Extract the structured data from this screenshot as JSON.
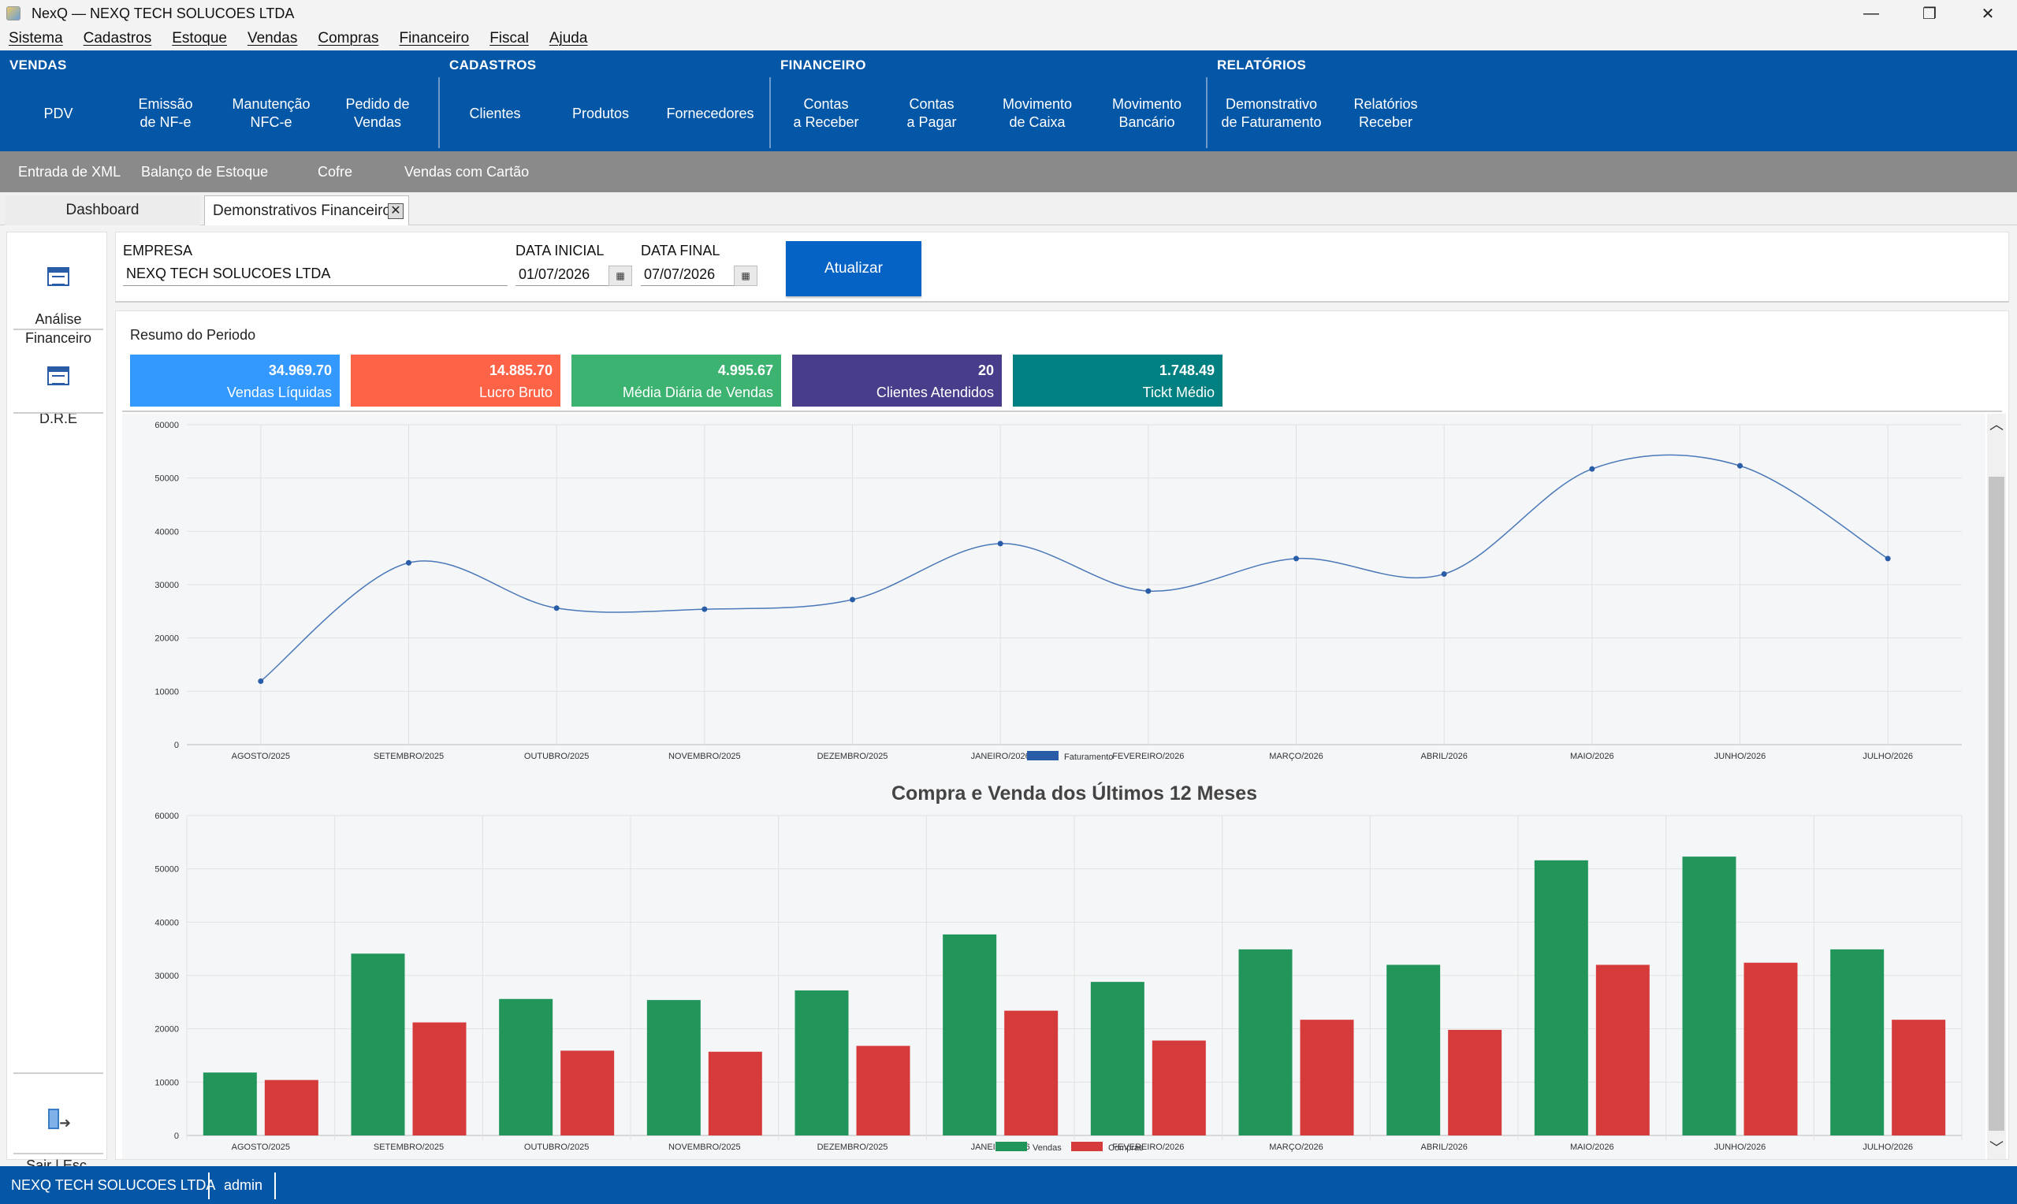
{
  "window": {
    "title": "NexQ — NEXQ TECH SOLUCOES LTDA",
    "minimize_glyph": "—",
    "restore_glyph": "❐",
    "close_glyph": "✕"
  },
  "menu": [
    "Sistema",
    "Cadastros",
    "Estoque",
    "Vendas",
    "Compras",
    "Financeiro",
    "Fiscal",
    "Ajuda"
  ],
  "ribbon": {
    "vendas": {
      "title": "VENDAS",
      "items": [
        "PDV",
        "Emissão\nde NF-e",
        "Manutenção\nNFC-e",
        "Pedido de\nVendas"
      ]
    },
    "cadastros": {
      "title": "CADASTROS",
      "items": [
        "Clientes",
        "Produtos",
        "Fornecedores"
      ]
    },
    "financeiro": {
      "title": "FINANCEIRO",
      "items": [
        "Contas\na Receber",
        "Contas\na Pagar",
        "Movimento\nde Caixa",
        "Movimento\nBancário"
      ]
    },
    "relatorios": {
      "title": "RELATÓRIOS",
      "items": [
        "Demonstrativo\nde Faturamento",
        "Relatórios\nReceber"
      ]
    }
  },
  "subbar": [
    "Entrada de XML",
    "Balanço de Estoque",
    "Cofre",
    "Vendas com Cartão"
  ],
  "tabs": {
    "dashboard": "Dashboard",
    "active": "Demonstrativos Financeiro",
    "close_glyph": "✕"
  },
  "left_panel": {
    "analise": "Análise\nFinanceiro",
    "dre": "D.R.E",
    "sair": "Sair | Esc."
  },
  "filters": {
    "empresa_label": "EMPRESA",
    "empresa_value": "NEXQ TECH SOLUCOES LTDA",
    "data_inicial_label": "DATA INICIAL",
    "data_inicial_value": "01/07/2026",
    "data_final_label": "DATA FINAL",
    "data_final_value": "07/07/2026",
    "calendar_glyph": "▦",
    "atualizar": "Atualizar"
  },
  "summary": {
    "title": "Resumo do Periodo",
    "cards": [
      {
        "value": "34.969.70",
        "label": "Vendas Líquidas",
        "color": "#3399ff"
      },
      {
        "value": "14.885.70",
        "label": "Lucro Bruto",
        "color": "#ff6347"
      },
      {
        "value": "4.995.67",
        "label": "Média Diária de Vendas",
        "color": "#3cb371"
      },
      {
        "value": "20",
        "label": "Clientes Atendidos",
        "color": "#483d8b"
      },
      {
        "value": "1.748.49",
        "label": "Tickt Médio",
        "color": "#008080"
      }
    ]
  },
  "scroll": {
    "up_glyph": "︿",
    "down_glyph": "﹀"
  },
  "chart_data": [
    {
      "type": "line",
      "title": "",
      "categories": [
        "AGOSTO/2025",
        "SETEMBRO/2025",
        "OUTUBRO/2025",
        "NOVEMBRO/2025",
        "DEZEMBRO/2025",
        "JANEIRO/2026",
        "FEVEREIRO/2026",
        "MARÇO/2026",
        "ABRIL/2026",
        "MAIO/2026",
        "JUNHO/2026",
        "JULHO/2026"
      ],
      "series": [
        {
          "name": "Faturamento",
          "color": "#2a5da8",
          "values": [
            11900,
            34100,
            25600,
            25400,
            27200,
            37700,
            28800,
            34900,
            32000,
            51700,
            52300,
            34900
          ]
        }
      ],
      "yticks": [
        "60000",
        "50000",
        "40000",
        "30000",
        "20000",
        "10000",
        "0"
      ],
      "ylim": [
        0,
        60000
      ],
      "grid": true,
      "legend": "bottom"
    },
    {
      "type": "bar",
      "title": "Compra e Venda dos Últimos 12 Meses",
      "categories": [
        "AGOSTO/2025",
        "SETEMBRO/2025",
        "OUTUBRO/2025",
        "NOVEMBRO/2025",
        "DEZEMBRO/2025",
        "JANEIRO/2026",
        "FEVEREIRO/2026",
        "MARÇO/2026",
        "ABRIL/2026",
        "MAIO/2026",
        "JUNHO/2026",
        "JULHO/2026"
      ],
      "series": [
        {
          "name": "Vendas",
          "color": "#22965a",
          "values": [
            11800,
            34100,
            25600,
            25400,
            27200,
            37700,
            28800,
            34900,
            32000,
            51600,
            52300,
            34900
          ]
        },
        {
          "name": "Compras",
          "color": "#d63b3b",
          "values": [
            10400,
            21200,
            15900,
            15700,
            16800,
            23400,
            17800,
            21700,
            19800,
            32000,
            32400,
            21700
          ]
        }
      ],
      "yticks": [
        "60000",
        "50000",
        "40000",
        "30000",
        "20000",
        "10000",
        "0"
      ],
      "ylim": [
        0,
        60000
      ],
      "grid": true,
      "legend": "bottom"
    }
  ],
  "status": {
    "company": "NEXQ TECH SOLUCOES LTDA",
    "user": "admin"
  }
}
